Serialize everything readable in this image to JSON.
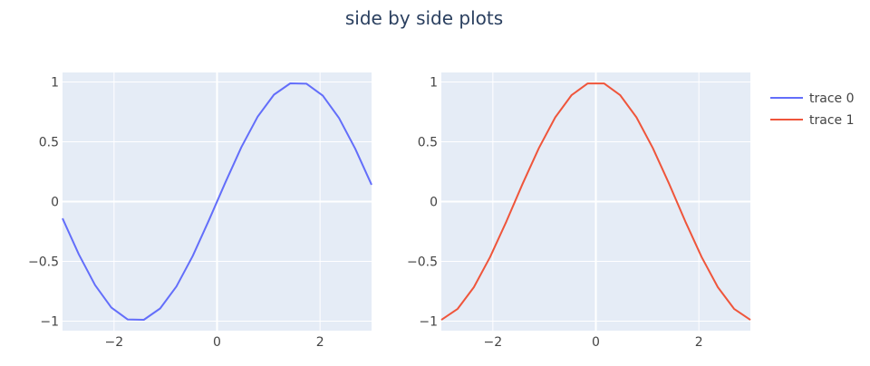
{
  "chart_data": {
    "type": "line",
    "title": "side by side plots",
    "legend": {
      "placement": "top-right",
      "entries": [
        "trace 0",
        "trace 1"
      ]
    },
    "subplots": [
      {
        "xlim": [
          -3,
          3
        ],
        "ylim": [
          -1.08,
          1.08
        ],
        "xticks": [
          -2,
          0,
          2
        ],
        "xtick_labels": [
          "−2",
          "0",
          "2"
        ],
        "yticks": [
          -1,
          -0.5,
          0,
          0.5,
          1
        ],
        "ytick_labels": [
          "−1",
          "−0.5",
          "0",
          "0.5",
          "1"
        ],
        "grid": true,
        "series": [
          {
            "name": "trace 0",
            "color": "#636efa",
            "x": [
              -3.0,
              -2.684,
              -2.368,
              -2.053,
              -1.737,
              -1.421,
              -1.105,
              -0.789,
              -0.474,
              -0.158,
              0.158,
              0.474,
              0.789,
              1.105,
              1.421,
              1.737,
              2.053,
              2.368,
              2.684,
              3.0
            ],
            "y": [
              -0.141,
              -0.442,
              -0.699,
              -0.886,
              -0.986,
              -0.989,
              -0.894,
              -0.71,
              -0.456,
              -0.157,
              0.157,
              0.456,
              0.71,
              0.894,
              0.989,
              0.986,
              0.886,
              0.699,
              0.442,
              0.141
            ]
          }
        ]
      },
      {
        "xlim": [
          -3,
          3
        ],
        "ylim": [
          -1.08,
          1.08
        ],
        "xticks": [
          -2,
          0,
          2
        ],
        "xtick_labels": [
          "−2",
          "0",
          "2"
        ],
        "yticks": [
          -1,
          -0.5,
          0,
          0.5,
          1
        ],
        "ytick_labels": [
          "−1",
          "−0.5",
          "0",
          "0.5",
          "1"
        ],
        "grid": true,
        "series": [
          {
            "name": "trace 1",
            "color": "#ef553b",
            "x": [
              -3.0,
              -2.684,
              -2.368,
              -2.053,
              -1.737,
              -1.421,
              -1.105,
              -0.789,
              -0.474,
              -0.158,
              0.158,
              0.474,
              0.789,
              1.105,
              1.421,
              1.737,
              2.053,
              2.368,
              2.684,
              3.0
            ],
            "y": [
              -0.99,
              -0.897,
              -0.716,
              -0.464,
              -0.166,
              0.149,
              0.449,
              0.705,
              0.89,
              0.988,
              0.988,
              0.89,
              0.705,
              0.449,
              0.149,
              -0.166,
              -0.464,
              -0.716,
              -0.897,
              -0.99
            ]
          }
        ]
      }
    ]
  }
}
